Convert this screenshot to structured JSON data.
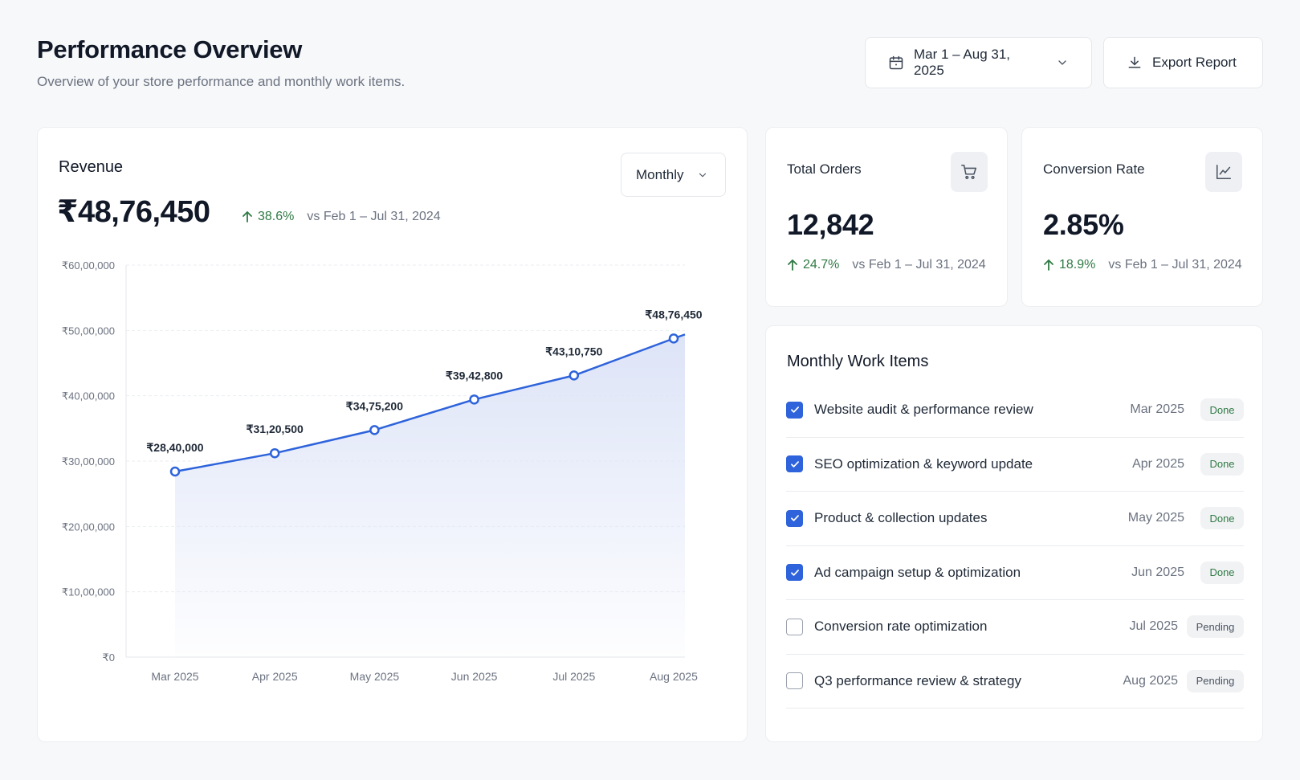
{
  "header": {
    "title": "Performance Overview",
    "subtitle": "Overview of your store performance and monthly work items."
  },
  "toolbar": {
    "date_range": "Mar 1 – Aug 31, 2025",
    "export_label": "Export Report"
  },
  "revenue": {
    "title": "Revenue",
    "value": "₹48,76,450",
    "delta": "38.6%",
    "comparison": "vs Feb 1 – Jul 31, 2024",
    "period_select": "Monthly"
  },
  "chart_data": {
    "type": "area",
    "categories": [
      "Mar 2025",
      "Apr 2025",
      "May 2025",
      "Jun 2025",
      "Jul 2025",
      "Aug 2025"
    ],
    "values": [
      2840000,
      3120500,
      3475200,
      3942800,
      4310750,
      4876450
    ],
    "data_labels": [
      "₹28,40,000",
      "₹31,20,500",
      "₹34,75,200",
      "₹39,42,800",
      "₹43,10,750",
      "₹48,76,450"
    ],
    "y_ticks": [
      0,
      1000000,
      2000000,
      3000000,
      4000000,
      5000000,
      6000000
    ],
    "y_tick_labels": [
      "₹0",
      "₹10,00,000",
      "₹20,00,000",
      "₹30,00,000",
      "₹40,00,000",
      "₹50,00,000",
      "₹60,00,000"
    ],
    "ylim": [
      0,
      6000000
    ],
    "grid": true,
    "line_color": "#2e63db",
    "fill_color": "#dde4f7"
  },
  "stats": {
    "orders": {
      "label": "Total Orders",
      "value": "12,842",
      "delta": "24.7%",
      "comparison": "vs Feb 1 – Jul 31, 2024",
      "icon": "cart-icon"
    },
    "conversion": {
      "label": "Conversion Rate",
      "value": "2.85%",
      "delta": "18.9%",
      "comparison": "vs Feb 1 – Jul 31, 2024",
      "icon": "line-chart-icon"
    }
  },
  "work_items": {
    "title": "Monthly Work Items",
    "items": [
      {
        "label": "Website audit & performance review",
        "date": "Mar 2025",
        "status": "Done",
        "checked": true
      },
      {
        "label": "SEO optimization & keyword update",
        "date": "Apr 2025",
        "status": "Done",
        "checked": true
      },
      {
        "label": "Product & collection updates",
        "date": "May 2025",
        "status": "Done",
        "checked": true
      },
      {
        "label": "Ad campaign setup & optimization",
        "date": "Jun 2025",
        "status": "Done",
        "checked": true
      },
      {
        "label": "Conversion rate optimization",
        "date": "Jul 2025",
        "status": "Pending",
        "checked": false
      },
      {
        "label": "Q3 performance review & strategy",
        "date": "Aug 2025",
        "status": "Pending",
        "checked": false
      }
    ]
  },
  "colors": {
    "accent": "#2e63db",
    "positive": "#2f7a44",
    "background": "#f7f8fa"
  }
}
